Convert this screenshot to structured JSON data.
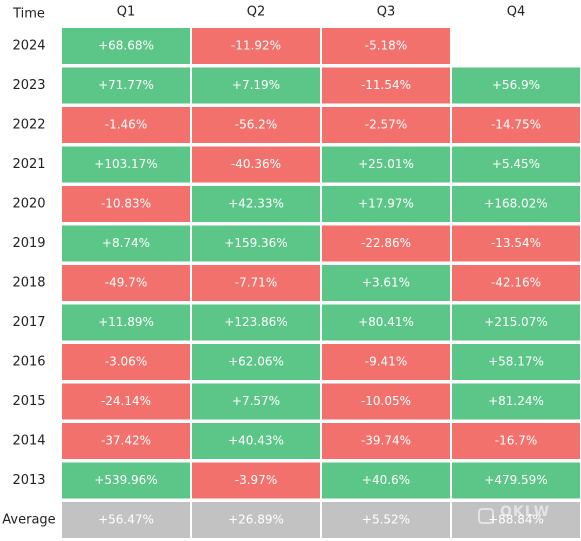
{
  "chart_data": {
    "type": "heatmap",
    "row_header": "Time",
    "columns": [
      "Q1",
      "Q2",
      "Q3",
      "Q4"
    ],
    "rows": [
      {
        "label": "2024",
        "values": [
          "+68.68%",
          "-11.92%",
          "-5.18%",
          null
        ]
      },
      {
        "label": "2023",
        "values": [
          "+71.77%",
          "+7.19%",
          "-11.54%",
          "+56.9%"
        ]
      },
      {
        "label": "2022",
        "values": [
          "-1.46%",
          "-56.2%",
          "-2.57%",
          "-14.75%"
        ]
      },
      {
        "label": "2021",
        "values": [
          "+103.17%",
          "-40.36%",
          "+25.01%",
          "+5.45%"
        ]
      },
      {
        "label": "2020",
        "values": [
          "-10.83%",
          "+42.33%",
          "+17.97%",
          "+168.02%"
        ]
      },
      {
        "label": "2019",
        "values": [
          "+8.74%",
          "+159.36%",
          "-22.86%",
          "-13.54%"
        ]
      },
      {
        "label": "2018",
        "values": [
          "-49.7%",
          "-7.71%",
          "+3.61%",
          "-42.16%"
        ]
      },
      {
        "label": "2017",
        "values": [
          "+11.89%",
          "+123.86%",
          "+80.41%",
          "+215.07%"
        ]
      },
      {
        "label": "2016",
        "values": [
          "-3.06%",
          "+62.06%",
          "-9.41%",
          "+58.17%"
        ]
      },
      {
        "label": "2015",
        "values": [
          "-24.14%",
          "+7.57%",
          "-10.05%",
          "+81.24%"
        ]
      },
      {
        "label": "2014",
        "values": [
          "-37.42%",
          "+40.43%",
          "-39.74%",
          "-16.7%"
        ]
      },
      {
        "label": "2013",
        "values": [
          "+539.96%",
          "-3.97%",
          "+40.6%",
          "+479.59%"
        ]
      }
    ],
    "average": {
      "label": "Average",
      "values": [
        "+56.47%",
        "+26.89%",
        "+5.52%",
        "+88.84%"
      ]
    }
  },
  "colors": {
    "positive": "#5cc689",
    "negative": "#f2716d",
    "average": "#c2c2c2",
    "text": "#222222",
    "cell_text": "#ffffff"
  },
  "watermark": {
    "text": "OKLW"
  }
}
